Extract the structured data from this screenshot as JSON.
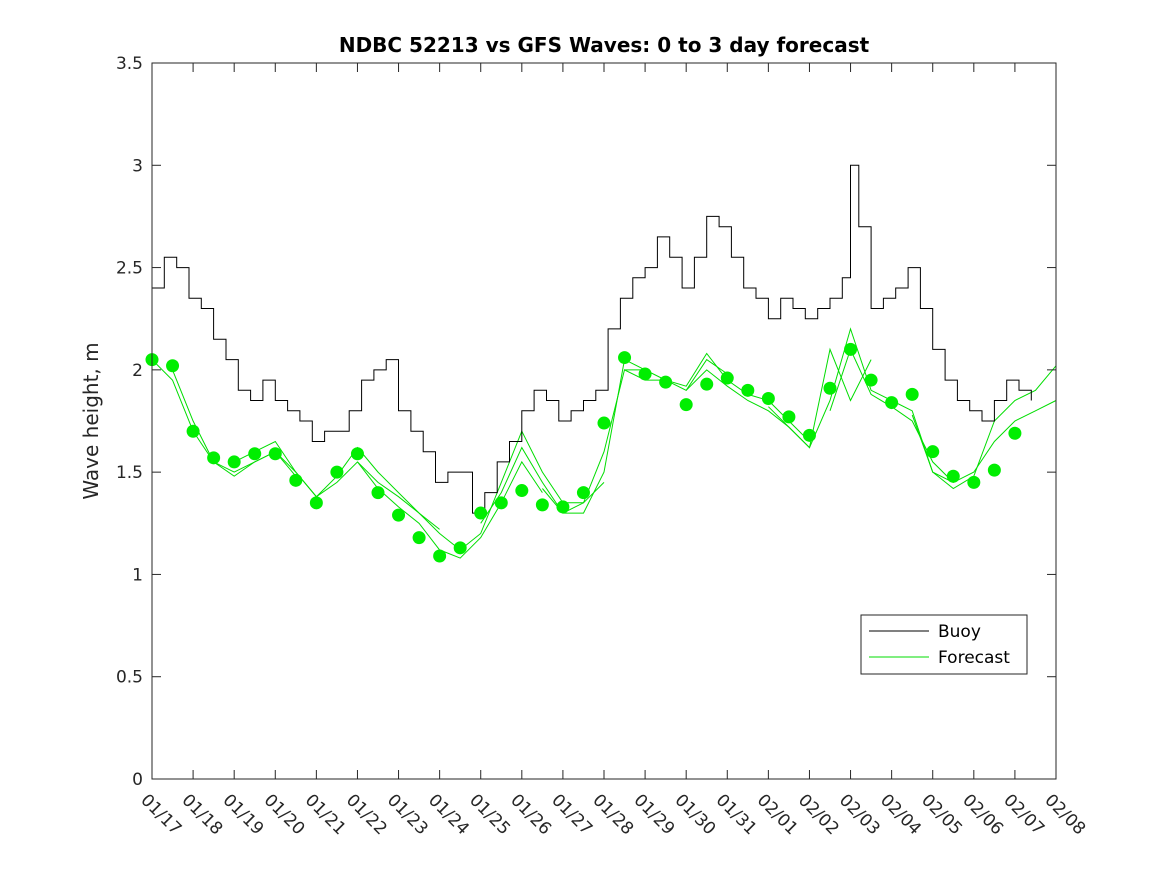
{
  "chart_data": {
    "type": "line",
    "title": "NDBC 52213 vs GFS Waves: 0 to 3 day forecast",
    "xlabel": "",
    "ylabel": "Wave height, m",
    "xlim": [
      0,
      22
    ],
    "ylim": [
      0,
      3.5
    ],
    "grid": false,
    "legend_position": "lower-right",
    "x_tick_labels": [
      "01/17",
      "01/18",
      "01/19",
      "01/20",
      "01/21",
      "01/22",
      "01/23",
      "01/24",
      "01/25",
      "01/26",
      "01/27",
      "01/28",
      "01/29",
      "01/30",
      "01/31",
      "02/01",
      "02/02",
      "02/03",
      "02/04",
      "02/05",
      "02/06",
      "02/07",
      "02/08"
    ],
    "y_tick_labels": [
      "0",
      "0.5",
      "1",
      "1.5",
      "2",
      "2.5",
      "3",
      "3.5"
    ],
    "y_ticks": [
      0,
      0.5,
      1,
      1.5,
      2,
      2.5,
      3,
      3.5
    ],
    "colors": {
      "buoy": "#000000",
      "forecast": "#00dd00",
      "analysis": "#00ee00"
    },
    "legend": [
      "Buoy",
      "Forecast"
    ],
    "series": [
      {
        "name": "Buoy",
        "x": [
          0,
          0.3,
          0.6,
          0.9,
          1.2,
          1.5,
          1.8,
          2.1,
          2.4,
          2.7,
          3.0,
          3.3,
          3.6,
          3.9,
          4.2,
          4.5,
          4.8,
          5.1,
          5.4,
          5.7,
          6.0,
          6.3,
          6.6,
          6.9,
          7.2,
          7.5,
          7.8,
          8.1,
          8.4,
          8.7,
          9.0,
          9.3,
          9.6,
          9.9,
          10.2,
          10.5,
          10.8,
          11.1,
          11.4,
          11.7,
          12.0,
          12.3,
          12.6,
          12.9,
          13.2,
          13.5,
          13.8,
          14.1,
          14.4,
          14.7,
          15.0,
          15.3,
          15.6,
          15.9,
          16.2,
          16.5,
          16.8,
          17.0,
          17.2,
          17.5,
          17.8,
          18.1,
          18.4,
          18.7,
          19.0,
          19.3,
          19.6,
          19.9,
          20.2,
          20.5,
          20.8,
          21.1,
          21.4
        ],
        "y": [
          2.4,
          2.55,
          2.5,
          2.35,
          2.3,
          2.15,
          2.05,
          1.9,
          1.85,
          1.95,
          1.85,
          1.8,
          1.75,
          1.65,
          1.7,
          1.7,
          1.8,
          1.95,
          2.0,
          2.05,
          1.8,
          1.7,
          1.6,
          1.45,
          1.5,
          1.5,
          1.3,
          1.4,
          1.55,
          1.65,
          1.8,
          1.9,
          1.85,
          1.75,
          1.8,
          1.85,
          1.9,
          2.2,
          2.35,
          2.45,
          2.5,
          2.65,
          2.55,
          2.4,
          2.55,
          2.75,
          2.7,
          2.55,
          2.4,
          2.35,
          2.25,
          2.35,
          2.3,
          2.25,
          2.3,
          2.35,
          2.45,
          3.0,
          2.7,
          2.3,
          2.35,
          2.4,
          2.5,
          2.3,
          2.1,
          1.95,
          1.85,
          1.8,
          1.75,
          1.85,
          1.95,
          1.9,
          1.85
        ]
      },
      {
        "name": "Forecast",
        "runs": [
          {
            "x": [
              0,
              0.5,
              1,
              1.5,
              2,
              2.5,
              3
            ],
            "y": [
              2.05,
              1.95,
              1.7,
              1.55,
              1.5,
              1.55,
              1.6
            ]
          },
          {
            "x": [
              0.5,
              1,
              1.5,
              2,
              2.5,
              3,
              3.5
            ],
            "y": [
              2.0,
              1.75,
              1.55,
              1.48,
              1.55,
              1.6,
              1.48
            ]
          },
          {
            "x": [
              2,
              2.5,
              3,
              3.5,
              4,
              4.5,
              5,
              5.5,
              6,
              6.5
            ],
            "y": [
              1.55,
              1.6,
              1.65,
              1.5,
              1.38,
              1.45,
              1.55,
              1.45,
              1.38,
              1.3
            ]
          },
          {
            "x": [
              3,
              3.5,
              4,
              4.5,
              5,
              5.5,
              6,
              6.5,
              7
            ],
            "y": [
              1.6,
              1.5,
              1.38,
              1.48,
              1.62,
              1.5,
              1.4,
              1.3,
              1.22
            ]
          },
          {
            "x": [
              5,
              5.5,
              6,
              6.5,
              7,
              7.5,
              8,
              8.5,
              9,
              9.5
            ],
            "y": [
              1.55,
              1.42,
              1.33,
              1.25,
              1.12,
              1.08,
              1.18,
              1.35,
              1.55,
              1.4
            ]
          },
          {
            "x": [
              6.5,
              7,
              7.5,
              8,
              8.5,
              9,
              9.5,
              10,
              10.5,
              11
            ],
            "y": [
              1.3,
              1.2,
              1.12,
              1.2,
              1.45,
              1.7,
              1.5,
              1.35,
              1.35,
              1.45
            ]
          },
          {
            "x": [
              8,
              8.5,
              9,
              9.5,
              10,
              10.5,
              11,
              11.5,
              12
            ],
            "y": [
              1.25,
              1.4,
              1.62,
              1.45,
              1.3,
              1.3,
              1.5,
              2.05,
              2.0
            ]
          },
          {
            "x": [
              9.5,
              10,
              10.5,
              11,
              11.5,
              12,
              12.5,
              13,
              13.5,
              14
            ],
            "y": [
              1.42,
              1.3,
              1.35,
              1.6,
              2.0,
              1.95,
              1.95,
              1.9,
              2.05,
              1.98
            ]
          },
          {
            "x": [
              11.5,
              12,
              12.5,
              13,
              13.5,
              14,
              14.5,
              15,
              15.5,
              16
            ],
            "y": [
              2.0,
              2.0,
              1.95,
              1.92,
              2.08,
              1.95,
              1.88,
              1.85,
              1.75,
              1.65
            ]
          },
          {
            "x": [
              13,
              13.5,
              14,
              14.5,
              15,
              15.5,
              16,
              16.5,
              17,
              17.5
            ],
            "y": [
              1.9,
              2.0,
              1.92,
              1.85,
              1.8,
              1.72,
              1.62,
              2.1,
              1.85,
              2.05
            ]
          },
          {
            "x": [
              15,
              15.5,
              16,
              16.5,
              17,
              17.5,
              18,
              18.5,
              19,
              19.5
            ],
            "y": [
              1.82,
              1.72,
              1.62,
              1.85,
              2.2,
              1.9,
              1.85,
              1.8,
              1.5,
              1.45
            ]
          },
          {
            "x": [
              16.5,
              17,
              17.5,
              18,
              18.5,
              19,
              19.5,
              20,
              20.5,
              21,
              21.5,
              22
            ],
            "y": [
              1.8,
              2.1,
              1.88,
              1.82,
              1.75,
              1.55,
              1.45,
              1.5,
              1.65,
              1.75,
              1.8,
              1.85
            ]
          },
          {
            "x": [
              18.5,
              19,
              19.5,
              20,
              20.5,
              21,
              21.5,
              22
            ],
            "y": [
              1.78,
              1.5,
              1.42,
              1.48,
              1.75,
              1.85,
              1.9,
              2.02
            ]
          }
        ]
      },
      {
        "name": "Analysis markers",
        "x": [
          0,
          0.5,
          1,
          1.5,
          2,
          2.5,
          3,
          3.5,
          4,
          4.5,
          5,
          5.5,
          6,
          6.5,
          7,
          7.5,
          8,
          8.5,
          9,
          9.5,
          10,
          10.5,
          11,
          11.5,
          12,
          12.5,
          13,
          13.5,
          14,
          14.5,
          15,
          15.5,
          16,
          16.5,
          17,
          17.5,
          18,
          18.5,
          19,
          19.5,
          20,
          20.5,
          21
        ],
        "y": [
          2.05,
          2.02,
          1.7,
          1.57,
          1.55,
          1.59,
          1.59,
          1.46,
          1.35,
          1.5,
          1.59,
          1.4,
          1.29,
          1.18,
          1.09,
          1.13,
          1.3,
          1.35,
          1.41,
          1.34,
          1.33,
          1.4,
          1.74,
          2.06,
          1.98,
          1.94,
          1.83,
          1.93,
          1.96,
          1.9,
          1.86,
          1.77,
          1.68,
          1.91,
          2.1,
          1.95,
          1.84,
          1.88,
          1.6,
          1.48,
          1.45,
          1.51,
          1.69
        ]
      }
    ]
  }
}
